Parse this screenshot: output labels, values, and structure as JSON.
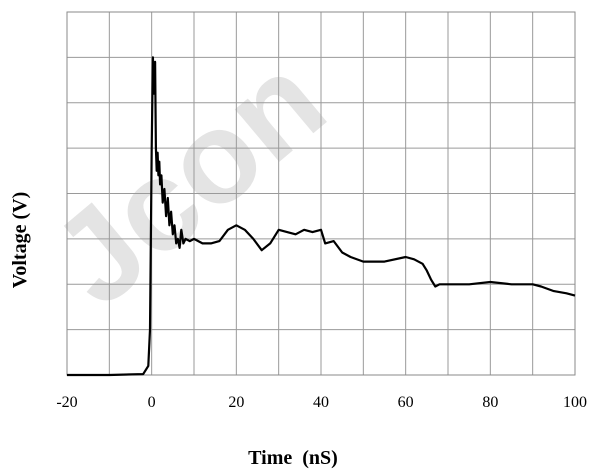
{
  "chart_data": {
    "type": "line",
    "xlabel": "Time  (nS)",
    "ylabel": "Voltage (V)",
    "xlim": [
      -20,
      100
    ],
    "ylim": [
      0,
      8
    ],
    "x_ticks": [
      "-20",
      "0",
      "20",
      "40",
      "60",
      "80",
      "100"
    ],
    "y_ticks_labeled": false,
    "grid": true,
    "watermark": "Jcon",
    "series": [
      {
        "color": "#000000",
        "x": [
          -20,
          -10,
          -2,
          -0.8,
          -0.4,
          0,
          0.3,
          0.6,
          0.8,
          1.0,
          1.2,
          1.4,
          1.6,
          1.8,
          2.0,
          2.3,
          2.6,
          3.0,
          3.4,
          3.8,
          4.2,
          4.6,
          5.0,
          5.4,
          5.8,
          6.2,
          6.6,
          7.0,
          7.5,
          8,
          9,
          10,
          12,
          14,
          16,
          18,
          20,
          22,
          24,
          26,
          28,
          30,
          32,
          34,
          36,
          38,
          40,
          41,
          43,
          45,
          47,
          50,
          55,
          60,
          62,
          64,
          65,
          66,
          67,
          68,
          70,
          75,
          80,
          85,
          88,
          90,
          92,
          95,
          98,
          100
        ],
        "y": [
          0.0,
          0.0,
          0.02,
          0.2,
          1.0,
          5.0,
          7.0,
          6.2,
          6.9,
          5.0,
          4.5,
          4.9,
          4.4,
          4.7,
          4.2,
          4.4,
          3.8,
          4.1,
          3.5,
          3.9,
          3.3,
          3.6,
          3.1,
          3.3,
          2.9,
          3.0,
          2.8,
          3.2,
          2.9,
          3.0,
          2.95,
          3.0,
          2.9,
          2.9,
          2.95,
          3.2,
          3.3,
          3.2,
          3.0,
          2.75,
          2.9,
          3.2,
          3.15,
          3.1,
          3.2,
          3.15,
          3.2,
          2.9,
          2.95,
          2.7,
          2.6,
          2.5,
          2.5,
          2.6,
          2.55,
          2.45,
          2.3,
          2.1,
          1.95,
          2.0,
          2.0,
          2.0,
          2.05,
          2.0,
          2.0,
          2.0,
          1.95,
          1.85,
          1.8,
          1.75
        ]
      }
    ]
  }
}
